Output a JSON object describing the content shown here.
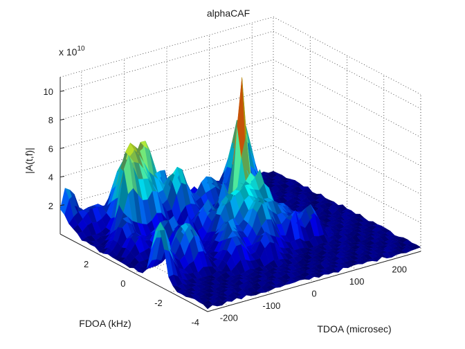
{
  "chart_data": {
    "type": "surface",
    "title": "alphaCAF",
    "xlabel": "TDOA (microsec)",
    "ylabel": "FDOA (kHz)",
    "zlabel": "|A(t,f)|",
    "z_multiplier": "x 10",
    "z_exponent": "10",
    "x_range": [
      -250,
      250
    ],
    "y_range": [
      -4,
      4
    ],
    "z_range": [
      0,
      11
    ],
    "x_ticks": [
      "-200",
      "-100",
      "0",
      "100",
      "200"
    ],
    "y_ticks": [
      "-4",
      "-2",
      "0",
      "2"
    ],
    "z_ticks": [
      "2",
      "4",
      "6",
      "8",
      "10"
    ],
    "x_tick_values": [
      -200,
      -100,
      0,
      100,
      200
    ],
    "y_tick_values": [
      -4,
      -2,
      0,
      2
    ],
    "z_tick_values": [
      2,
      4,
      6,
      8,
      10
    ],
    "grid": true,
    "colormap": "jet",
    "peak": {
      "tdoa": 30,
      "fdoa": 0.7,
      "value": 10.0
    },
    "background_clutter_max": 4.2
  }
}
